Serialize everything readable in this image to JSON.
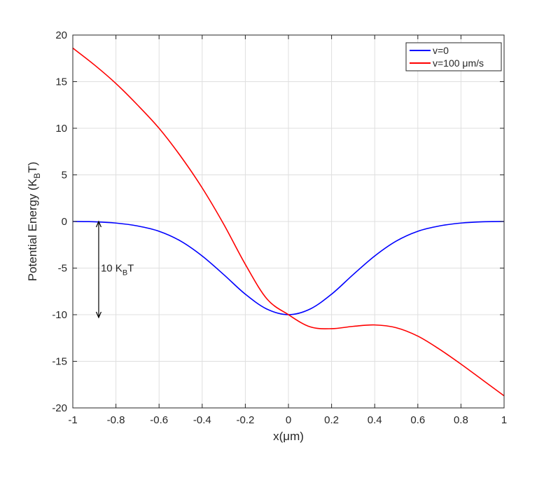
{
  "chart_data": {
    "type": "line",
    "xlabel": "x(μm)",
    "ylabel_main": "Potential Energy (K",
    "ylabel_sub": "B",
    "ylabel_tail": "T)",
    "xlim": [
      -1,
      1
    ],
    "ylim": [
      -20,
      20
    ],
    "grid": true,
    "legend_position": "top-right",
    "x_ticks": [
      -1,
      -0.8,
      -0.6,
      -0.4,
      -0.2,
      0,
      0.2,
      0.4,
      0.6,
      0.8,
      1
    ],
    "x_tick_labels": [
      "-1",
      "-0.8",
      "-0.6",
      "-0.4",
      "-0.2",
      "0",
      "0.2",
      "0.4",
      "0.6",
      "0.8",
      "1"
    ],
    "y_ticks": [
      -20,
      -15,
      -10,
      -5,
      0,
      5,
      10,
      15,
      20
    ],
    "y_tick_labels": [
      "-20",
      "-15",
      "-10",
      "-5",
      "0",
      "5",
      "10",
      "15",
      "20"
    ],
    "series": [
      {
        "name": "v=0",
        "color": "#0000ff",
        "x": [
          -1,
          -0.9,
          -0.8,
          -0.7,
          -0.6,
          -0.5,
          -0.4,
          -0.3,
          -0.2,
          -0.1,
          0,
          0.1,
          0.2,
          0.3,
          0.4,
          0.5,
          0.6,
          0.7,
          0.8,
          0.9,
          1
        ],
        "y": [
          0,
          -0.03,
          -0.17,
          -0.48,
          -1.05,
          -2.1,
          -3.7,
          -5.7,
          -7.8,
          -9.4,
          -10,
          -9.4,
          -7.8,
          -5.7,
          -3.7,
          -2.1,
          -1.05,
          -0.48,
          -0.17,
          -0.03,
          0
        ]
      },
      {
        "name": "v=100 μm/s",
        "color": "#ff0000",
        "x": [
          -1,
          -0.9,
          -0.8,
          -0.7,
          -0.6,
          -0.5,
          -0.4,
          -0.3,
          -0.2,
          -0.1,
          0,
          0.1,
          0.2,
          0.3,
          0.4,
          0.5,
          0.6,
          0.7,
          0.8,
          0.9,
          1
        ],
        "y": [
          18.6,
          16.8,
          14.8,
          12.5,
          10.0,
          7.0,
          3.6,
          -0.3,
          -4.6,
          -8.3,
          -10,
          -11.3,
          -11.5,
          -11.25,
          -11.1,
          -11.4,
          -12.3,
          -13.7,
          -15.3,
          -17.0,
          -18.7
        ]
      }
    ],
    "annotation": {
      "label_main": "10 K",
      "label_sub": "B",
      "label_tail": "T",
      "x": -0.88,
      "y_from": 0,
      "y_to": -10.3
    }
  }
}
